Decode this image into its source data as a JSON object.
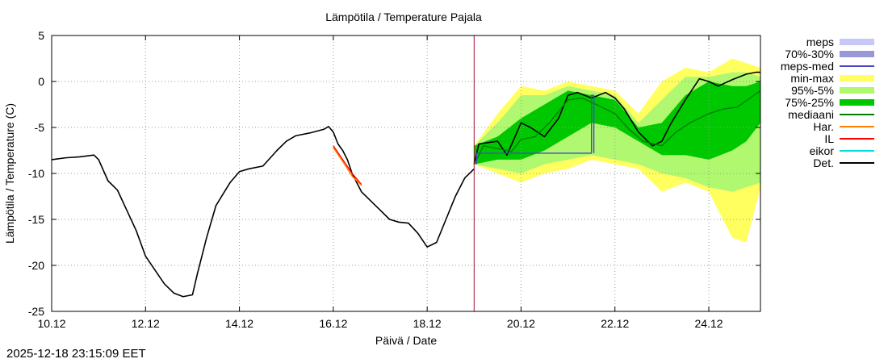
{
  "chart_data": {
    "type": "line",
    "title": "Lämpötila / Temperature   Pajala",
    "xlabel": "Päivä / Date",
    "ylabel": "Lämpötila / Temperature (C)",
    "ylim": [
      -25,
      5
    ],
    "xlim": [
      10,
      25.1
    ],
    "x_unit": "days (December 2025)",
    "grid": true,
    "forecast_start": 19.0,
    "xticks": [
      {
        "value": 10,
        "label": "10.12"
      },
      {
        "value": 12,
        "label": "12.12"
      },
      {
        "value": 14,
        "label": "14.12"
      },
      {
        "value": 16,
        "label": "16.12"
      },
      {
        "value": 18,
        "label": "18.12"
      },
      {
        "value": 20,
        "label": "20.12"
      },
      {
        "value": 22,
        "label": "22.12"
      },
      {
        "value": 24,
        "label": "24.12"
      }
    ],
    "yticks": [
      {
        "value": 5,
        "label": "5"
      },
      {
        "value": 0,
        "label": "0"
      },
      {
        "value": -5,
        "label": "-5"
      },
      {
        "value": -10,
        "label": "-10"
      },
      {
        "value": -15,
        "label": "-15"
      },
      {
        "value": -20,
        "label": "-20"
      },
      {
        "value": -25,
        "label": "-25"
      }
    ],
    "legend_position": "right",
    "legend": [
      {
        "label": "meps",
        "color": "#c8c8f8",
        "style": "box"
      },
      {
        "label": "70%-30%",
        "color": "#9898d8",
        "style": "box"
      },
      {
        "label": "meps-med",
        "color": "#4848c8",
        "style": "line"
      },
      {
        "label": "min-max",
        "color": "#ffff60",
        "style": "box"
      },
      {
        "label": "95%-5%",
        "color": "#b0f870",
        "style": "box"
      },
      {
        "label": "75%-25%",
        "color": "#00c800",
        "style": "box"
      },
      {
        "label": "mediaani",
        "color": "#008000",
        "style": "line"
      },
      {
        "label": "Har.",
        "color": "#ff8000",
        "style": "line"
      },
      {
        "label": "IL",
        "color": "#ff0000",
        "style": "line"
      },
      {
        "label": "eikor",
        "color": "#00e0e0",
        "style": "line"
      },
      {
        "label": "Det.",
        "color": "#000000",
        "style": "line"
      }
    ],
    "series": [
      {
        "name": "Det.",
        "color": "#000000",
        "x": [
          10.0,
          10.3,
          10.6,
          10.9,
          11.0,
          11.2,
          11.4,
          11.6,
          11.8,
          12.0,
          12.2,
          12.4,
          12.6,
          12.8,
          13.0,
          13.1,
          13.3,
          13.5,
          13.8,
          14.0,
          14.2,
          14.5,
          14.8,
          15.0,
          15.2,
          15.5,
          15.8,
          15.9,
          16.0,
          16.1,
          16.2,
          16.3,
          16.4,
          16.5,
          16.6,
          16.8,
          17.0,
          17.2,
          17.4,
          17.6,
          17.8,
          18.0,
          18.2,
          18.4,
          18.6,
          18.8,
          19.0
        ],
        "y": [
          -8.5,
          -8.3,
          -8.2,
          -8.0,
          -8.5,
          -10.8,
          -11.8,
          -14.0,
          -16.2,
          -19.0,
          -20.5,
          -22.0,
          -23.0,
          -23.4,
          -23.2,
          -21.0,
          -17.0,
          -13.5,
          -11.0,
          -9.8,
          -9.5,
          -9.2,
          -7.5,
          -6.5,
          -5.9,
          -5.6,
          -5.2,
          -4.9,
          -5.5,
          -6.8,
          -7.5,
          -8.5,
          -10.0,
          -11.0,
          -12.0,
          -13.0,
          -14.0,
          -15.0,
          -15.3,
          -15.4,
          -16.5,
          -18.0,
          -17.5,
          -15.0,
          -12.5,
          -10.5,
          -9.5
        ]
      },
      {
        "name": "IL",
        "color": "#ff0000",
        "x": [
          16.0,
          16.2,
          16.4,
          16.6
        ],
        "y": [
          -7.0,
          -8.5,
          -10.0,
          -11.2
        ]
      },
      {
        "name": "Har.",
        "color": "#ff8000",
        "x": [
          16.0,
          16.2,
          16.4,
          16.6
        ],
        "y": [
          -7.2,
          -8.7,
          -10.3,
          -11.3
        ]
      },
      {
        "name": "Det. forecast",
        "color": "#000000",
        "x": [
          19.0,
          19.1,
          19.5,
          19.7,
          20.0,
          20.2,
          20.5,
          20.8,
          21.0,
          21.2,
          21.5,
          21.8,
          22.0,
          22.2,
          22.5,
          22.8,
          23.0,
          23.2,
          23.5,
          23.8,
          24.0,
          24.2,
          24.5,
          24.8,
          25.0,
          25.1
        ],
        "y": [
          -9.0,
          -6.8,
          -6.5,
          -8.0,
          -4.5,
          -5.0,
          -6.0,
          -4.0,
          -1.5,
          -1.2,
          -1.8,
          -1.2,
          -1.8,
          -3.0,
          -5.5,
          -7.0,
          -6.5,
          -4.5,
          -2.0,
          0.3,
          0.0,
          -0.5,
          0.2,
          0.8,
          1.0,
          1.0
        ]
      },
      {
        "name": "mediaani",
        "color": "#008000",
        "x": [
          19.0,
          19.2,
          19.5,
          19.8,
          20.0,
          20.3,
          20.6,
          21.0,
          21.3,
          21.6,
          22.0,
          22.3,
          22.6,
          23.0,
          23.3,
          23.6,
          24.0,
          24.3,
          24.6,
          25.1
        ],
        "y": [
          -9.0,
          -7.0,
          -7.3,
          -7.6,
          -6.3,
          -6.0,
          -4.5,
          -2.0,
          -1.8,
          -2.5,
          -3.5,
          -5.2,
          -6.5,
          -7.0,
          -5.5,
          -4.5,
          -3.5,
          -3.0,
          -2.8,
          -1.0
        ]
      },
      {
        "name": "meps-med",
        "color": "#4848c8",
        "x": [
          19.05,
          19.05,
          21.5,
          21.5,
          21.55,
          21.55
        ],
        "y": [
          -9.0,
          -7.8,
          -7.8,
          -1.5,
          -1.5,
          -7.8
        ]
      }
    ],
    "bands": [
      {
        "name": "min-max",
        "color": "#ffff60",
        "x": [
          19.0,
          19.5,
          20.0,
          20.5,
          21.0,
          21.5,
          22.0,
          22.5,
          23.0,
          23.5,
          24.0,
          24.5,
          24.8,
          25.1
        ],
        "lower": [
          -9.0,
          -10.0,
          -11.0,
          -10.0,
          -9.5,
          -8.5,
          -9.0,
          -9.5,
          -12.0,
          -11.0,
          -12.0,
          -17.0,
          -17.5,
          -11.5
        ],
        "upper": [
          -7.0,
          -3.5,
          -0.5,
          -1.0,
          0.0,
          -0.5,
          -1.0,
          -3.5,
          0.0,
          1.5,
          1.0,
          2.5,
          2.0,
          1.5
        ]
      },
      {
        "name": "95%-5%",
        "color": "#b0f870",
        "x": [
          19.0,
          19.5,
          20.0,
          20.5,
          21.0,
          21.5,
          22.0,
          22.5,
          23.0,
          23.5,
          24.0,
          24.5,
          24.8,
          25.1
        ],
        "lower": [
          -9.0,
          -9.5,
          -10.0,
          -9.0,
          -8.5,
          -8.0,
          -8.5,
          -9.0,
          -10.0,
          -10.5,
          -11.5,
          -12.0,
          -11.5,
          -11.0
        ],
        "upper": [
          -7.0,
          -4.5,
          -1.5,
          -1.5,
          -0.5,
          -1.0,
          -1.5,
          -4.5,
          -2.0,
          0.5,
          0.5,
          1.0,
          1.0,
          0.5
        ]
      },
      {
        "name": "75%-25%",
        "color": "#00c800",
        "x": [
          19.0,
          19.5,
          20.0,
          20.5,
          21.0,
          21.5,
          22.0,
          22.5,
          23.0,
          23.5,
          24.0,
          24.5,
          24.8,
          25.1
        ],
        "lower": [
          -9.0,
          -8.5,
          -8.5,
          -7.5,
          -6.0,
          -4.5,
          -5.0,
          -6.5,
          -8.0,
          -8.0,
          -8.5,
          -7.5,
          -6.5,
          -4.5
        ],
        "upper": [
          -7.0,
          -6.0,
          -4.0,
          -2.5,
          -1.0,
          -1.5,
          -2.0,
          -5.0,
          -4.5,
          -1.5,
          0.0,
          -0.5,
          -0.5,
          0.0
        ]
      }
    ]
  },
  "timestamp": "2025-12-18 23:15:09 EET"
}
